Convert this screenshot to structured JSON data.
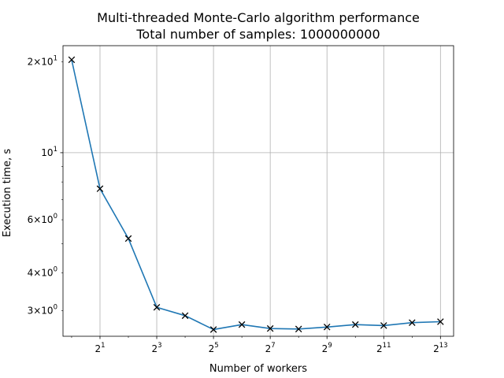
{
  "chart_data": {
    "type": "line",
    "title": "Multi-threaded Monte-Carlo algorithm performance",
    "subtitle": "Total number of samples: 1000000000",
    "xlabel": "Number of workers",
    "ylabel": "Execution time, s",
    "xscale": "log2",
    "yscale": "log10",
    "grid": true,
    "xlim": [
      0.81,
      11290
    ],
    "ylim": [
      2.47,
      22.6
    ],
    "x": [
      1,
      2,
      4,
      8,
      16,
      32,
      64,
      128,
      256,
      512,
      1024,
      2048,
      4096,
      8192
    ],
    "series": [
      {
        "values": [
          20.3,
          7.6,
          5.2,
          3.08,
          2.89,
          2.6,
          2.7,
          2.62,
          2.61,
          2.65,
          2.7,
          2.68,
          2.74,
          2.76
        ],
        "color": "#1f77b4",
        "marker": "x",
        "marker_color": "#000000"
      }
    ],
    "xticks": [
      {
        "value": 2,
        "base": "2",
        "exp": "1"
      },
      {
        "value": 8,
        "base": "2",
        "exp": "3"
      },
      {
        "value": 32,
        "base": "2",
        "exp": "5"
      },
      {
        "value": 128,
        "base": "2",
        "exp": "7"
      },
      {
        "value": 512,
        "base": "2",
        "exp": "9"
      },
      {
        "value": 2048,
        "base": "2",
        "exp": "11"
      },
      {
        "value": 8192,
        "base": "2",
        "exp": "13"
      }
    ],
    "yticks_major": [
      {
        "value": 10,
        "base": "10",
        "exp": "1"
      }
    ],
    "yticks_minor": [
      {
        "value": 3,
        "mant": "3",
        "base": "10",
        "exp": "0"
      },
      {
        "value": 4,
        "mant": "4",
        "base": "10",
        "exp": "0"
      },
      {
        "value": 6,
        "mant": "6",
        "base": "10",
        "exp": "0"
      },
      {
        "value": 20,
        "mant": "2",
        "base": "10",
        "exp": "1"
      }
    ]
  }
}
